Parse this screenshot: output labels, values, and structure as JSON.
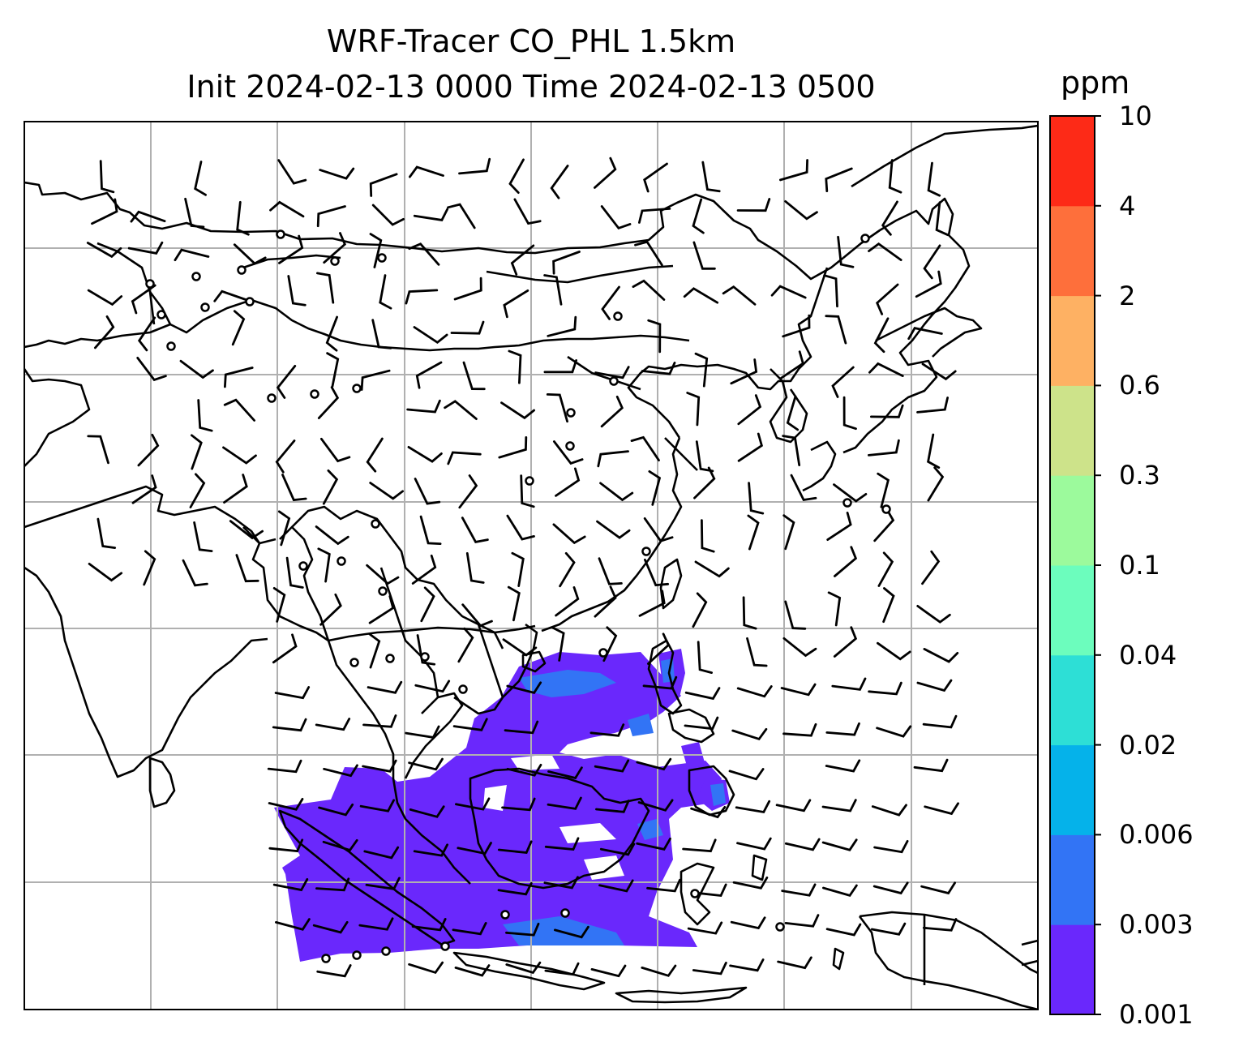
{
  "figure": {
    "title_line1": "WRF-Tracer CO_PHL 1.5km",
    "title_line2": "Init 2024-02-13 0000 Time 2024-02-13 0500"
  },
  "colorbar": {
    "unit": "ppm",
    "levels": [
      "0.001",
      "0.003",
      "0.006",
      "0.02",
      "0.04",
      "0.1",
      "0.3",
      "0.6",
      "2",
      "4",
      "10"
    ],
    "colors": [
      "#6a28fc",
      "#3274f5",
      "#05b2ea",
      "#2ddfd6",
      "#6cfdbd",
      "#9cfa9c",
      "#cde38a",
      "#feb163",
      "#fe6f3b",
      "#fd2a17"
    ]
  },
  "map": {
    "gridlines": true,
    "grid_color": "#b0b0b0",
    "land_outline_color": "#000000",
    "tracer_fill_colors": [
      "#6a28fc",
      "#3274f5"
    ],
    "overlays": [
      "coastlines",
      "country-borders",
      "wind-barbs",
      "calm-circles",
      "co-tracer-shading"
    ]
  }
}
